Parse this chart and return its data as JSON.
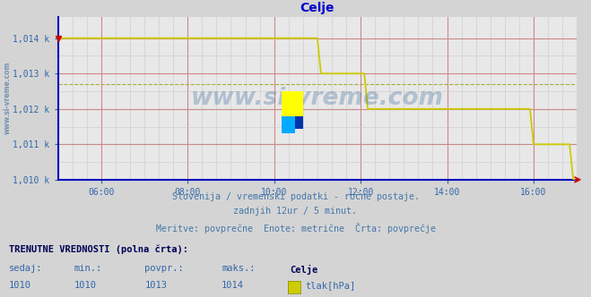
{
  "title": "Celje",
  "title_color": "#0000cc",
  "title_fontsize": 10,
  "bg_color": "#d4d4d4",
  "plot_bg_color": "#e8e8e8",
  "line_color": "#cccc00",
  "line_width": 1.2,
  "tick_color": "#3366aa",
  "grid_major_color": "#cc8888",
  "grid_minor_color": "#c8c8c8",
  "avg_line_color": "#aaaa44",
  "axis_color": "#0000bb",
  "xmin": 0,
  "xmax": 144,
  "ymin": 1010.0,
  "ymax": 1014.6,
  "yticks": [
    1010,
    1011,
    1012,
    1013,
    1014
  ],
  "ytick_labels": [
    "1,010 k",
    "1,011 k",
    "1,012 k",
    "1,013 k",
    "1,014 k"
  ],
  "xticks": [
    12,
    36,
    60,
    84,
    108,
    132
  ],
  "xtick_labels": [
    "06:00",
    "08:00",
    "10:00",
    "12:00",
    "14:00",
    "16:00"
  ],
  "watermark": "www.si-vreme.com",
  "footer_lines": [
    "Slovenija / vremenski podatki - ročne postaje.",
    "zadnjih 12ur / 5 minut.",
    "Meritve: povprečne  Enote: metrične  Črta: povprečje"
  ],
  "footer_color": "#4477aa",
  "bottom_label_bold": "TRENUTNE VREDNOSTI (polna črta):",
  "bottom_cols": [
    "sedaj:",
    "min.:",
    "povpr.:",
    "maks.:"
  ],
  "bottom_vals": [
    "1010",
    "1010",
    "1013",
    "1014"
  ],
  "bottom_station": "Celje",
  "bottom_unit": "tlak[hPa]",
  "legend_color": "#cccc00",
  "side_watermark": "www.si-vreme.com",
  "data_x": [
    0,
    1,
    2,
    3,
    4,
    5,
    6,
    7,
    8,
    9,
    10,
    11,
    12,
    13,
    14,
    15,
    16,
    17,
    18,
    19,
    20,
    21,
    22,
    23,
    24,
    25,
    26,
    27,
    28,
    29,
    30,
    31,
    32,
    33,
    34,
    35,
    36,
    37,
    38,
    39,
    40,
    41,
    42,
    43,
    44,
    45,
    46,
    47,
    48,
    49,
    50,
    51,
    52,
    53,
    54,
    55,
    56,
    57,
    58,
    59,
    60,
    61,
    62,
    63,
    64,
    65,
    66,
    67,
    68,
    69,
    70,
    71,
    72,
    73,
    74,
    75,
    76,
    77,
    78,
    79,
    80,
    81,
    82,
    83,
    84,
    85,
    86,
    87,
    88,
    89,
    90,
    91,
    92,
    93,
    94,
    95,
    96,
    97,
    98,
    99,
    100,
    101,
    102,
    103,
    104,
    105,
    106,
    107,
    108,
    109,
    110,
    111,
    112,
    113,
    114,
    115,
    116,
    117,
    118,
    119,
    120,
    121,
    122,
    123,
    124,
    125,
    126,
    127,
    128,
    129,
    130,
    131,
    132,
    133,
    134,
    135,
    136,
    137,
    138,
    139,
    140,
    141,
    142,
    143,
    144
  ],
  "data_y": [
    1014,
    1014,
    1014,
    1014,
    1014,
    1014,
    1014,
    1014,
    1014,
    1014,
    1014,
    1014,
    1014,
    1014,
    1014,
    1014,
    1014,
    1014,
    1014,
    1014,
    1014,
    1014,
    1014,
    1014,
    1014,
    1014,
    1014,
    1014,
    1014,
    1014,
    1014,
    1014,
    1014,
    1014,
    1014,
    1014,
    1014,
    1014,
    1014,
    1014,
    1014,
    1014,
    1014,
    1014,
    1014,
    1014,
    1014,
    1014,
    1014,
    1014,
    1014,
    1014,
    1014,
    1014,
    1014,
    1014,
    1014,
    1014,
    1014,
    1014,
    1014,
    1014,
    1014,
    1014,
    1014,
    1014,
    1014,
    1014,
    1014,
    1014,
    1014,
    1014,
    1014,
    1013,
    1013,
    1013,
    1013,
    1013,
    1013,
    1013,
    1013,
    1013,
    1013,
    1013,
    1013,
    1013,
    1012,
    1012,
    1012,
    1012,
    1012,
    1012,
    1012,
    1012,
    1012,
    1012,
    1012,
    1012,
    1012,
    1012,
    1012,
    1012,
    1012,
    1012,
    1012,
    1012,
    1012,
    1012,
    1012,
    1012,
    1012,
    1012,
    1012,
    1012,
    1012,
    1012,
    1012,
    1012,
    1012,
    1012,
    1012,
    1012,
    1012,
    1012,
    1012,
    1012,
    1012,
    1012,
    1012,
    1012,
    1012,
    1012,
    1011,
    1011,
    1011,
    1011,
    1011,
    1011,
    1011,
    1011,
    1011,
    1011,
    1011,
    1010,
    1010
  ],
  "avg_y": 1012.7
}
